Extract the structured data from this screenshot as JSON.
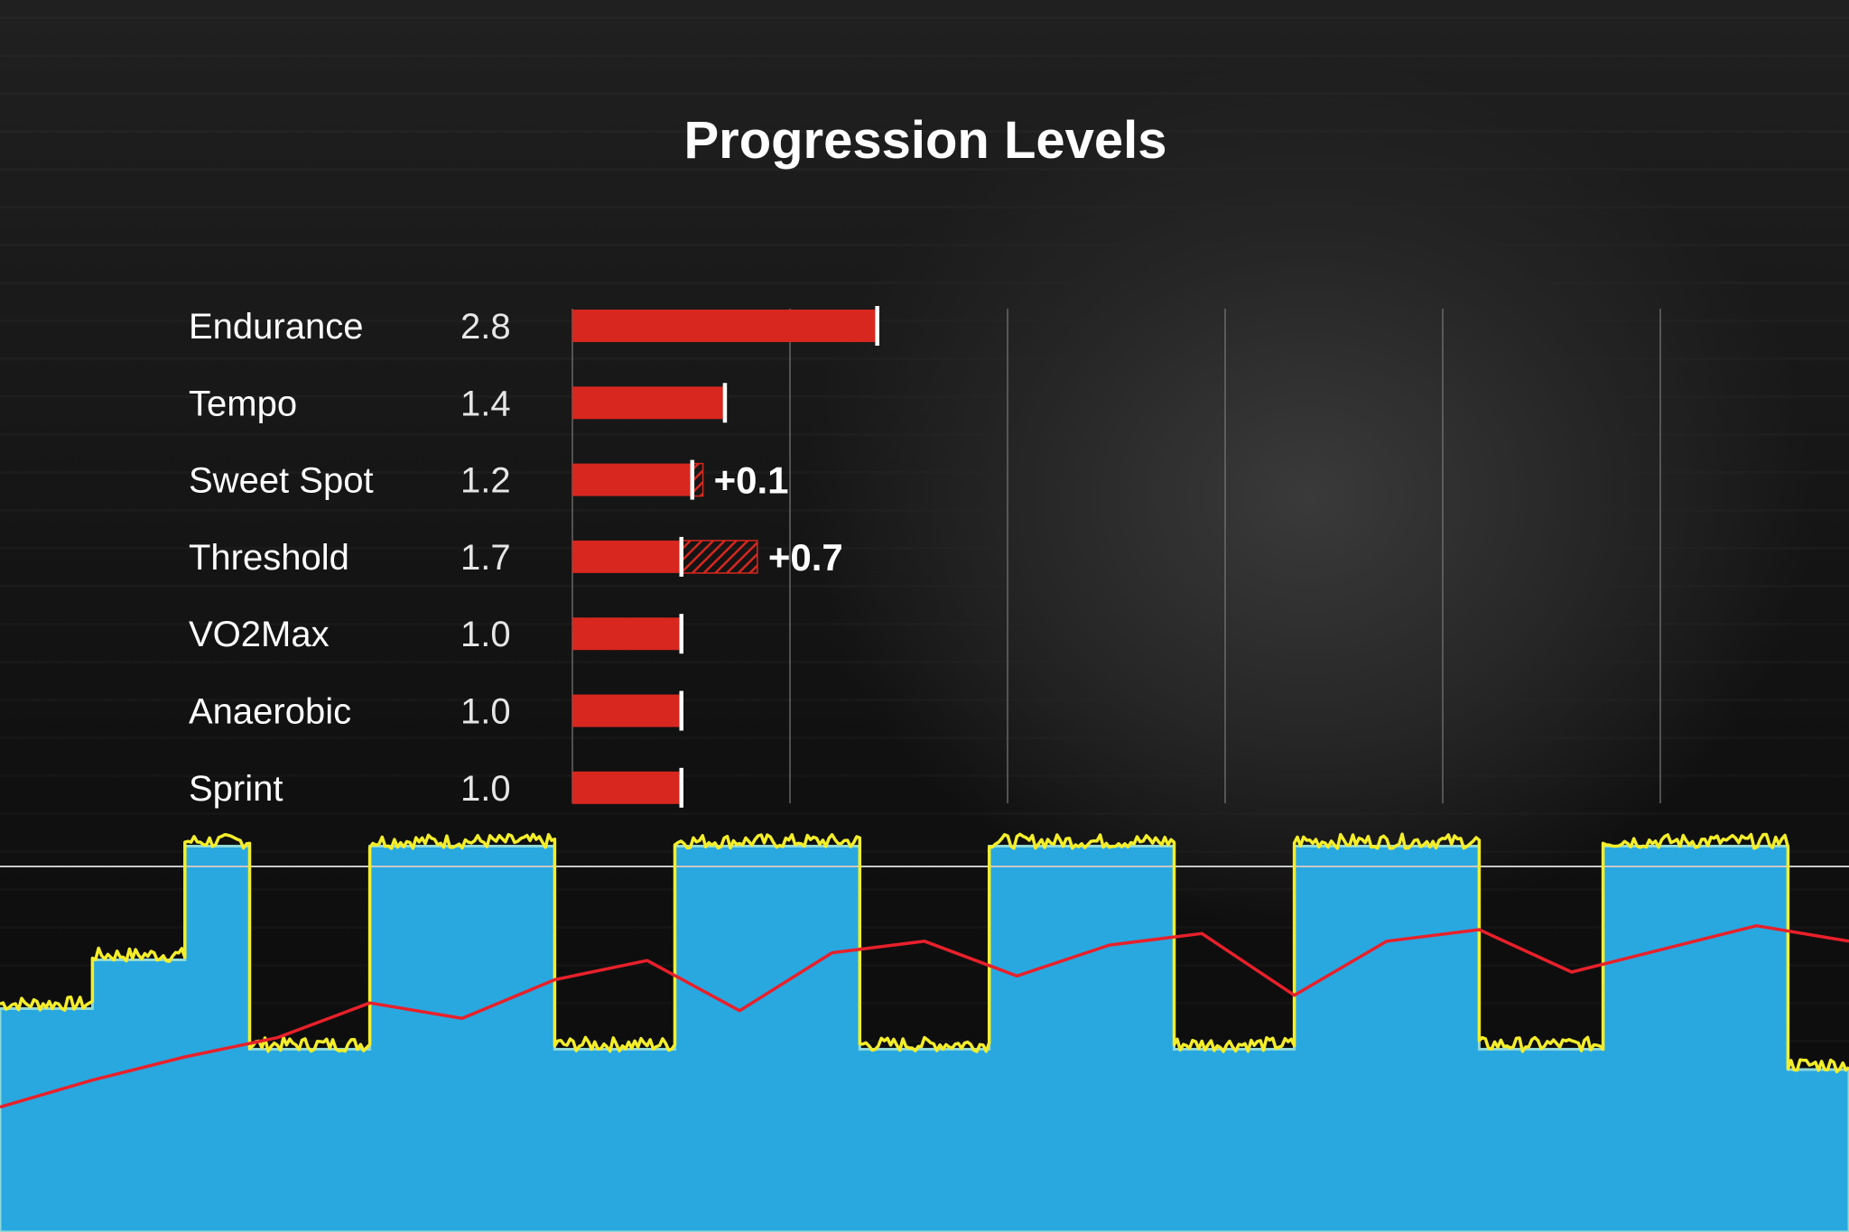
{
  "chart_data": [
    {
      "type": "bar",
      "title": "Progression Levels",
      "categories": [
        "Endurance",
        "Tempo",
        "Sweet Spot",
        "Threshold",
        "VO2Max",
        "Anaerobic",
        "Sprint"
      ],
      "values": [
        2.8,
        1.4,
        1.2,
        1.7,
        1.0,
        1.0,
        1.0
      ],
      "deltas": [
        null,
        null,
        "+0.1",
        "+0.7",
        null,
        null,
        null
      ],
      "delta_values": [
        0,
        0,
        0.1,
        0.7,
        0,
        0,
        0
      ],
      "xlim": [
        0,
        10
      ],
      "grid": true,
      "colors": {
        "bar": "#d8271f",
        "marker": "#ffffff",
        "delta_hatch": "#d8271f",
        "grid": "#7a7a7a"
      }
    },
    {
      "type": "area",
      "description_series": [
        "target power",
        "actual power",
        "heart rate"
      ],
      "x": [
        0,
        5,
        10,
        15,
        20,
        25,
        30,
        35,
        40,
        45,
        50,
        55,
        60,
        65,
        70,
        75,
        80,
        85,
        90,
        95,
        100
      ],
      "target_segments": [
        {
          "start": 0,
          "end": 5,
          "level": 0.55
        },
        {
          "start": 5,
          "end": 10,
          "level": 0.67
        },
        {
          "start": 10,
          "end": 13.5,
          "level": 0.95
        },
        {
          "start": 13.5,
          "end": 20,
          "level": 0.45
        },
        {
          "start": 20,
          "end": 30,
          "level": 0.95
        },
        {
          "start": 30,
          "end": 36.5,
          "level": 0.45
        },
        {
          "start": 36.5,
          "end": 46.5,
          "level": 0.95
        },
        {
          "start": 46.5,
          "end": 53.5,
          "level": 0.45
        },
        {
          "start": 53.5,
          "end": 63.5,
          "level": 0.95
        },
        {
          "start": 63.5,
          "end": 70,
          "level": 0.45
        },
        {
          "start": 70,
          "end": 80,
          "level": 0.95
        },
        {
          "start": 80,
          "end": 86.7,
          "level": 0.45
        },
        {
          "start": 86.7,
          "end": 96.7,
          "level": 0.95
        },
        {
          "start": 96.7,
          "end": 100,
          "level": 0.4
        }
      ],
      "heart_rate": [
        0.45,
        0.52,
        0.58,
        0.63,
        0.72,
        0.68,
        0.78,
        0.83,
        0.7,
        0.85,
        0.88,
        0.79,
        0.87,
        0.9,
        0.74,
        0.88,
        0.91,
        0.8,
        0.86,
        0.92,
        0.88
      ],
      "threshold_line": 0.9,
      "ylim": [
        0,
        1
      ],
      "colors": {
        "area": "#29a8e0",
        "area_edge": "#8fd8d8",
        "power": "#f4ee2a",
        "heart_rate": "#e8202a",
        "threshold": "#c8c8c8"
      }
    }
  ]
}
